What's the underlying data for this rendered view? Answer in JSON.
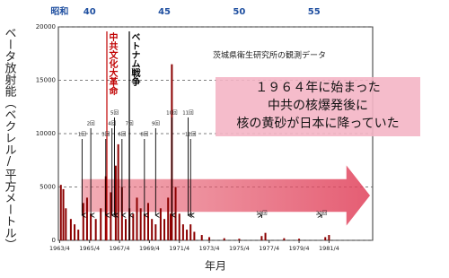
{
  "chart_data": {
    "type": "bar",
    "y_label": "ベータ放射能（ベクレル/平方メートル）",
    "x_label": "年月",
    "source_note": "茨城県衛生研究所の観測データ",
    "message": [
      "１９６４年に始まった",
      "中共の核爆発後に",
      "核の黄砂が日本に降っていた"
    ],
    "event_labels": [
      {
        "text": "中共文化大革命",
        "color": "#c00000"
      },
      {
        "text": "ベトナム戦争",
        "color": "#000000"
      }
    ],
    "color": "#8b0000",
    "grid": true,
    "ylim": [
      0,
      20000
    ],
    "yticks": [
      0,
      5000,
      10000,
      15000,
      20000
    ],
    "xlim": [
      "1963/3",
      "1984/3"
    ],
    "xticks": [
      "1963/4",
      "1965/4",
      "1967/4",
      "1969/4",
      "1971/4",
      "1973/4",
      "1975/4",
      "1977/4",
      "1979/4",
      "1981/4"
    ],
    "top_ticks": [
      {
        "value": "1963/4",
        "label": "昭和"
      },
      {
        "value": "1965/4",
        "label": "40"
      },
      {
        "value": "1970/4",
        "label": "45"
      },
      {
        "value": "1975/4",
        "label": "50"
      },
      {
        "value": "1980/4",
        "label": "55"
      }
    ],
    "top_color": "#1f4fa0",
    "x": [
      "1963/5",
      "1963/7",
      "1963/9",
      "1964/1",
      "1964/4",
      "1964/7",
      "1964/11",
      "1965/2",
      "1965/5",
      "1965/9",
      "1966/1",
      "1966/5",
      "1966/9",
      "1967/1",
      "1967/3",
      "1967/6",
      "1967/9",
      "1967/12",
      "1968/3",
      "1968/6",
      "1968/9",
      "1968/12",
      "1969/3",
      "1969/6",
      "1969/9",
      "1970/1",
      "1970/4",
      "1970/7",
      "1970/9",
      "1970/10",
      "1971/1",
      "1971/4",
      "1971/7",
      "1971/10",
      "1972/1",
      "1972/4",
      "1972/10",
      "1973/4",
      "1974/4",
      "1975/4",
      "1976/10",
      "1977/1",
      "1978/4",
      "1979/4",
      "1981/1",
      "1981/4"
    ],
    "values": [
      5200,
      4800,
      3000,
      2000,
      1500,
      1000,
      3500,
      4000,
      2500,
      2000,
      3000,
      6000,
      4500,
      7000,
      9000,
      5000,
      2000,
      3000,
      2500,
      4000,
      3000,
      2500,
      3500,
      2000,
      1500,
      3000,
      2000,
      4000,
      2500,
      16500,
      5000,
      2500,
      1500,
      1000,
      1500,
      800,
      500,
      300,
      200,
      150,
      400,
      700,
      200,
      150,
      300,
      500
    ],
    "test_markers": [
      {
        "label": "1回",
        "x": "1964/10"
      },
      {
        "label": "2回",
        "x": "1965/5"
      },
      {
        "label": "3回",
        "x": "1966/5"
      },
      {
        "label": "4回",
        "x": "1966/10"
      },
      {
        "label": "5回",
        "x": "1966/12"
      },
      {
        "label": "6回",
        "x": "1967/6"
      },
      {
        "label": "7回",
        "x": "1967/12"
      },
      {
        "label": "8回",
        "x": "1968/12"
      },
      {
        "label": "9回",
        "x": "1969/9"
      },
      {
        "label": "10回",
        "x": "1970/10"
      },
      {
        "label": "11回",
        "x": "1971/11"
      },
      {
        "label": "12回",
        "x": "1972/1"
      },
      {
        "label": "19回",
        "x": "1976/10"
      },
      {
        "label": "20回",
        "x": "1980/10"
      }
    ]
  }
}
